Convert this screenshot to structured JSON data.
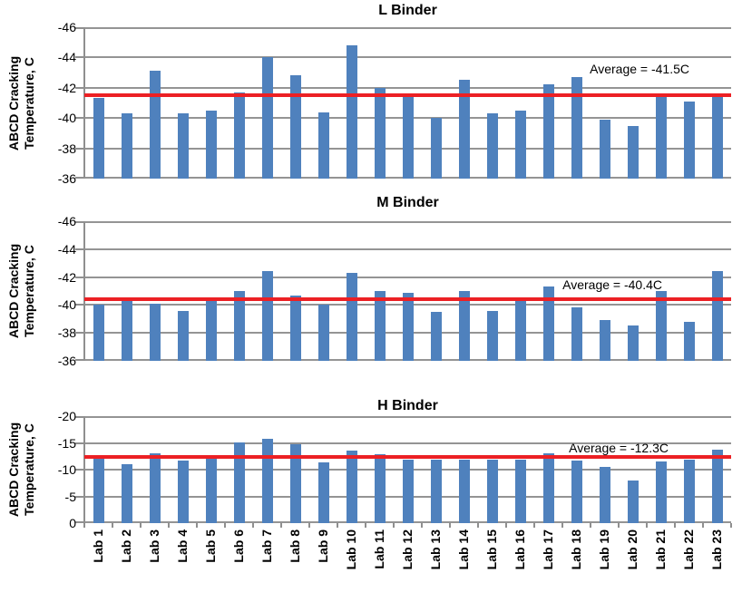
{
  "page": {
    "background": "#ffffff"
  },
  "colors": {
    "bar": "#4F81BD",
    "average_line": "#EC2024",
    "gridline": "#949494",
    "axis_line": "#8F8F8F",
    "text": "#000000"
  },
  "chart_data": [
    {
      "type": "bar",
      "title": "L Binder",
      "ylabel": "ABCD Cracking Temperature, C",
      "ylabel_lines": [
        "ABCD Cracking",
        "Temperature, C"
      ],
      "xlabel": "",
      "ylim": [
        -46,
        -36
      ],
      "yticks": [
        -46,
        -44,
        -42,
        -40,
        -38,
        -36
      ],
      "grid": true,
      "x_tick_labels_visible": false,
      "categories": [
        "Lab 1",
        "Lab 2",
        "Lab 3",
        "Lab 4",
        "Lab 5",
        "Lab 6",
        "Lab 7",
        "Lab 8",
        "Lab 9",
        "Lab 10",
        "Lab 11",
        "Lab 12",
        "Lab 13",
        "Lab 14",
        "Lab 15",
        "Lab 16",
        "Lab 17",
        "Lab 18",
        "Lab 19",
        "Lab 20",
        "Lab 21",
        "Lab 22",
        "Lab 23"
      ],
      "values": [
        -41.3,
        -40.3,
        -43.1,
        -40.3,
        -40.5,
        -41.7,
        -44.0,
        -42.8,
        -40.4,
        -44.8,
        -42.0,
        -41.4,
        -40.0,
        -42.5,
        -40.3,
        -40.5,
        -42.2,
        -42.7,
        -39.9,
        -39.5,
        -41.4,
        -41.1,
        -41.4
      ],
      "average": -41.5,
      "annotation": "Average = -41.5C"
    },
    {
      "type": "bar",
      "title": "M Binder",
      "ylabel": "ABCD Cracking Temperature, C",
      "ylabel_lines": [
        "ABCD Cracking",
        "Temperature, C"
      ],
      "xlabel": "",
      "ylim": [
        -46,
        -36
      ],
      "yticks": [
        -46,
        -44,
        -42,
        -40,
        -38,
        -36
      ],
      "grid": true,
      "x_tick_labels_visible": false,
      "categories": [
        "Lab 1",
        "Lab 2",
        "Lab 3",
        "Lab 4",
        "Lab 5",
        "Lab 6",
        "Lab 7",
        "Lab 8",
        "Lab 9",
        "Lab 10",
        "Lab 11",
        "Lab 12",
        "Lab 13",
        "Lab 14",
        "Lab 15",
        "Lab 16",
        "Lab 17",
        "Lab 18",
        "Lab 19",
        "Lab 20",
        "Lab 21",
        "Lab 22",
        "Lab 23"
      ],
      "values": [
        -40.0,
        -40.5,
        -40.1,
        -39.6,
        -40.3,
        -41.0,
        -42.4,
        -40.7,
        -40.0,
        -42.3,
        -41.0,
        -40.9,
        -39.5,
        -41.0,
        -39.6,
        -40.3,
        -41.3,
        -39.8,
        -38.9,
        -38.5,
        -41.0,
        -38.8,
        -42.4
      ],
      "average": -40.4,
      "annotation": "Average = -40.4C"
    },
    {
      "type": "bar",
      "title": "H Binder",
      "ylabel": "ABCD Cracking Temperature, C",
      "ylabel_lines": [
        "ABCD Cracking",
        "Temperature, C"
      ],
      "xlabel": "",
      "ylim": [
        -20,
        0
      ],
      "yticks": [
        -20,
        -15,
        -10,
        -5,
        0
      ],
      "grid": true,
      "x_tick_labels_visible": true,
      "categories": [
        "Lab 1",
        "Lab 2",
        "Lab 3",
        "Lab 4",
        "Lab 5",
        "Lab 6",
        "Lab 7",
        "Lab 8",
        "Lab 9",
        "Lab 10",
        "Lab 11",
        "Lab 12",
        "Lab 13",
        "Lab 14",
        "Lab 15",
        "Lab 16",
        "Lab 17",
        "Lab 18",
        "Lab 19",
        "Lab 20",
        "Lab 21",
        "Lab 22",
        "Lab 23"
      ],
      "values": [
        -12.0,
        -11.0,
        -13.0,
        -11.7,
        -12.0,
        -15.0,
        -15.8,
        -14.8,
        -11.4,
        -13.5,
        -12.8,
        -11.8,
        -11.8,
        -11.8,
        -11.8,
        -11.8,
        -13.1,
        -11.7,
        -10.5,
        -8.0,
        -11.6,
        -11.8,
        -13.7
      ],
      "average": -12.3,
      "annotation": "Average = -12.3C"
    }
  ]
}
